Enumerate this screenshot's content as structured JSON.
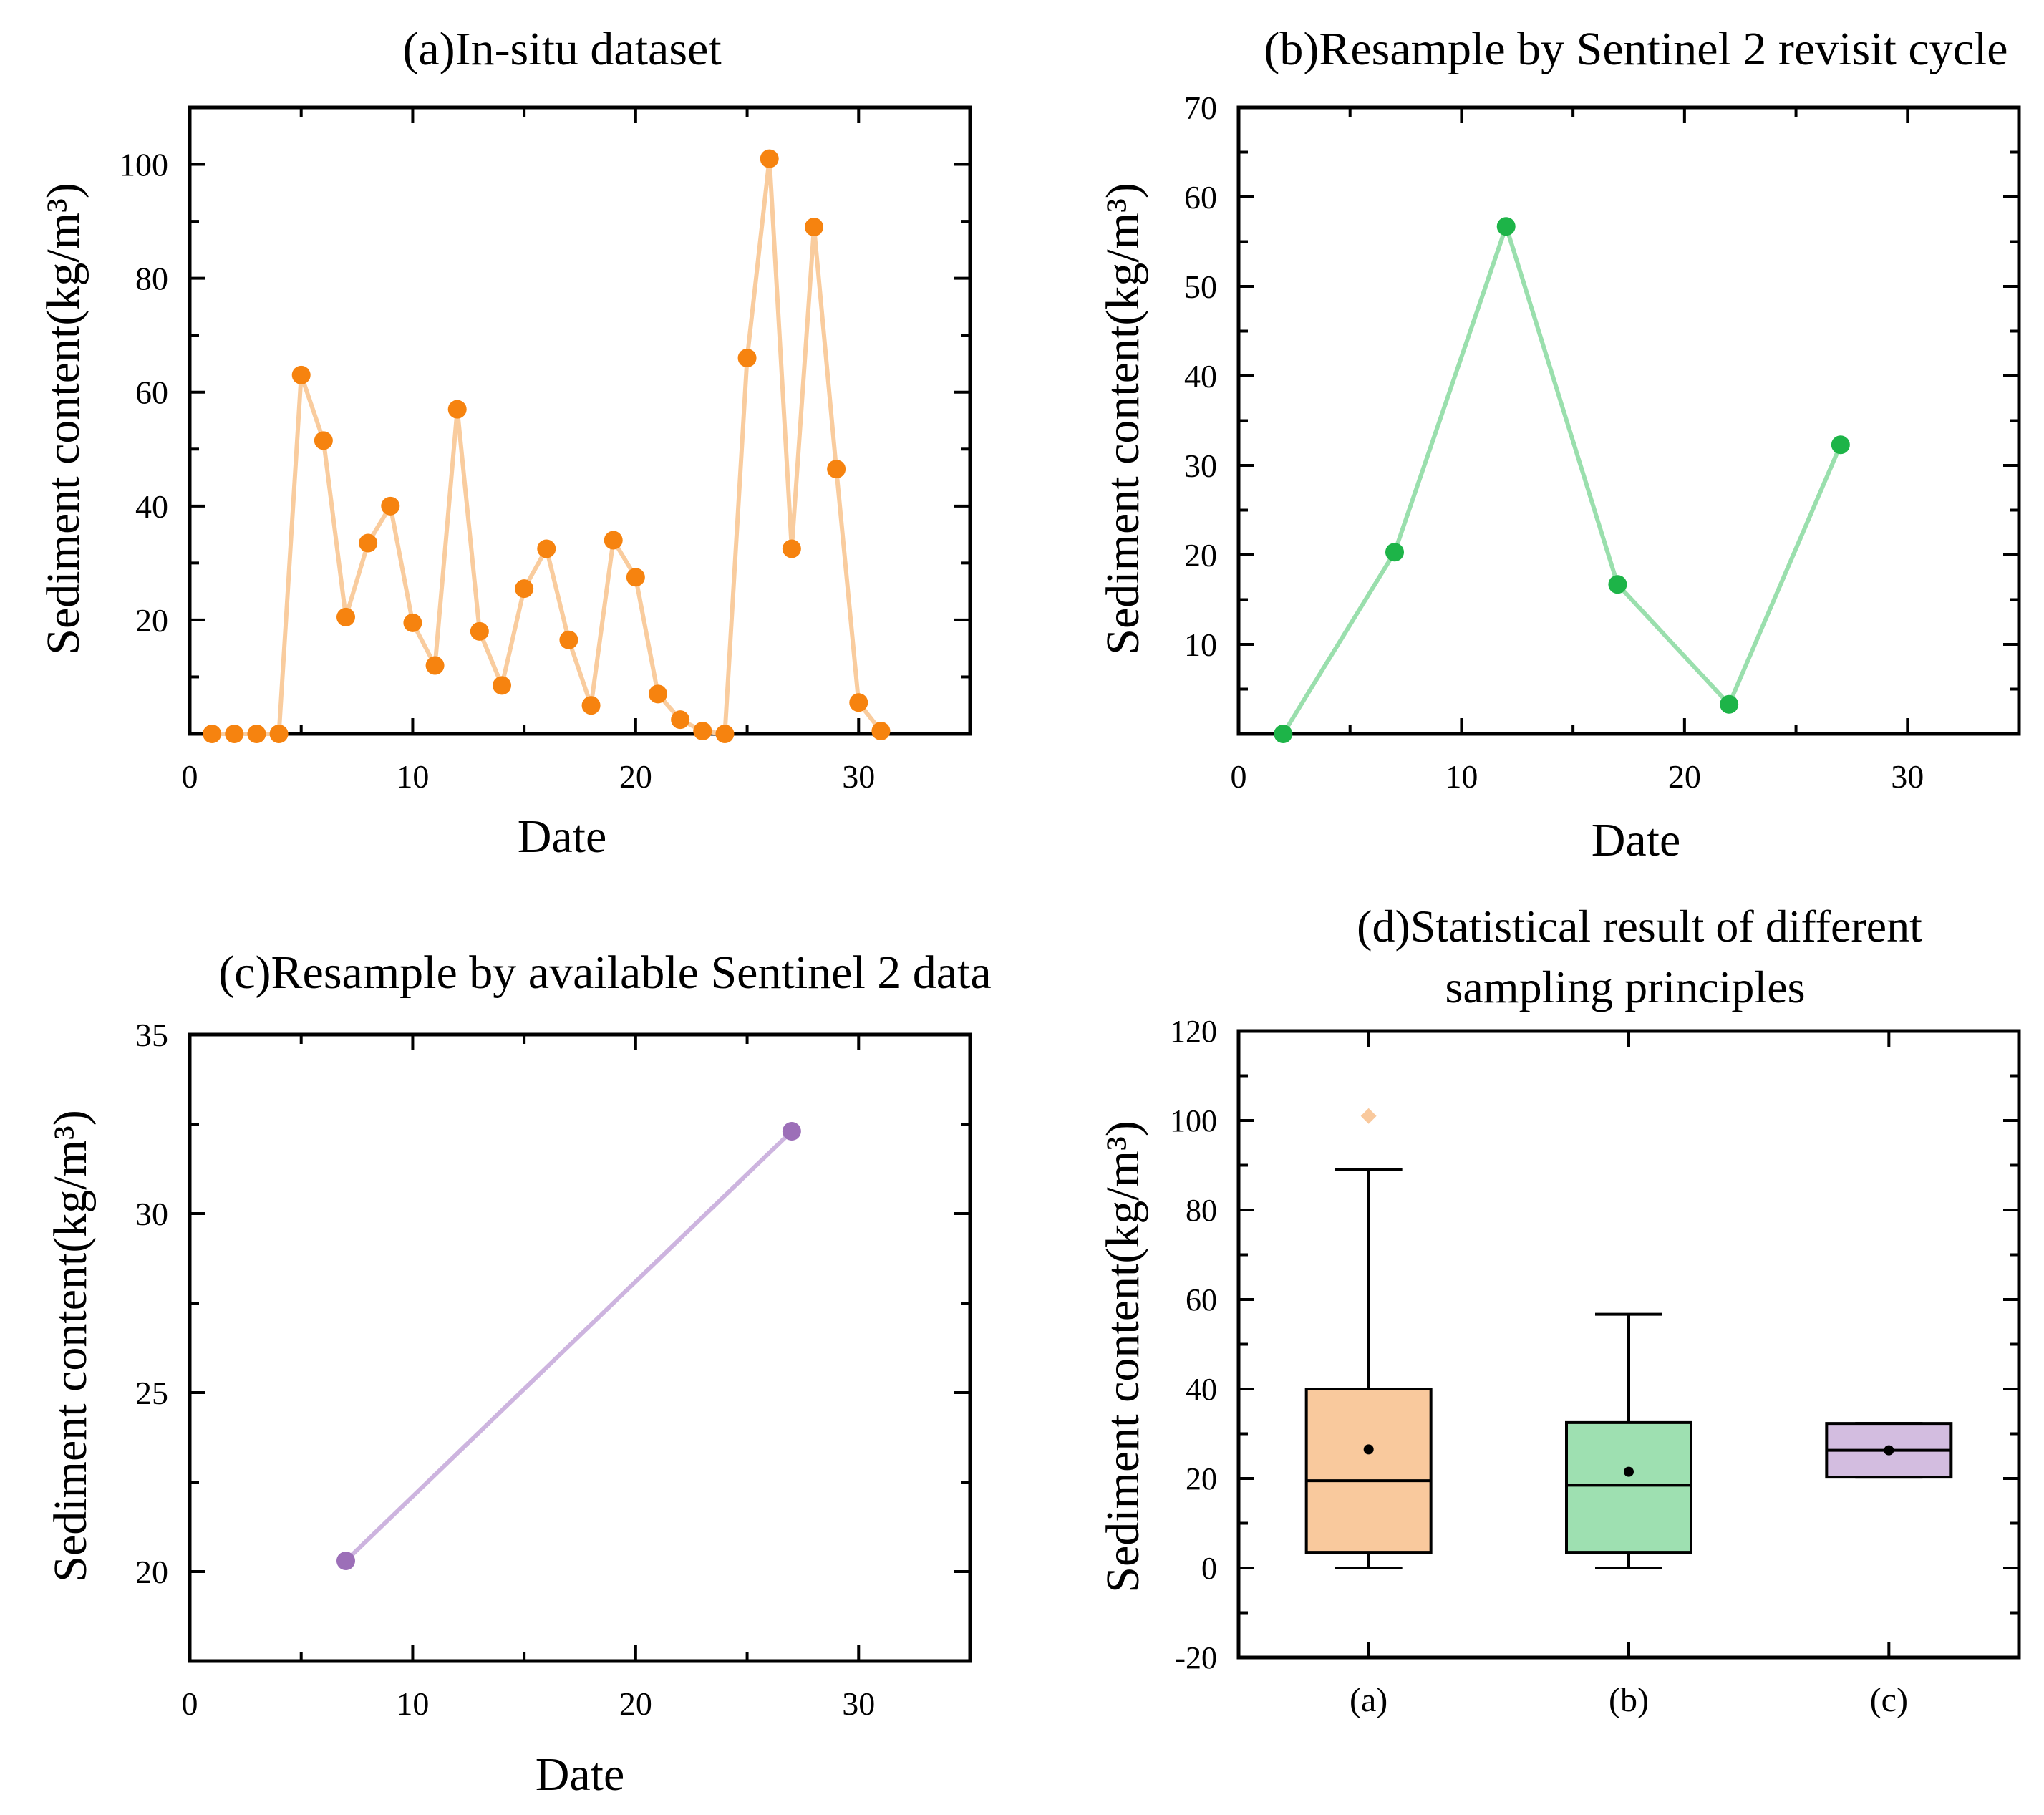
{
  "colors": {
    "a_point": "#F6830F",
    "a_line": "#F9CC9E",
    "b_point": "#1DB448",
    "b_line": "#9ADFAD",
    "c_point": "#9C6FB8",
    "c_line": "#CDB4DF",
    "box_a": "#F9C99D",
    "box_b": "#9EE0B1",
    "box_c": "#D3BDE0",
    "outlier": "#F9C99D"
  },
  "chart_data": [
    {
      "id": "a",
      "type": "line",
      "title": "(a)In-situ dataset",
      "xlabel": "Date",
      "ylabel": "Sediment content(kg/m³)",
      "xlim": [
        0,
        35
      ],
      "ylim": [
        0,
        110
      ],
      "xticks": [
        0,
        10,
        20,
        30
      ],
      "yticks": [
        20,
        40,
        60,
        80,
        100
      ],
      "x": [
        1,
        2,
        3,
        4,
        5,
        6,
        7,
        8,
        9,
        10,
        11,
        12,
        13,
        14,
        15,
        16,
        17,
        18,
        19,
        20,
        21,
        22,
        23,
        24,
        25,
        26,
        27,
        28,
        29,
        30,
        31
      ],
      "y": [
        0,
        0,
        0,
        0,
        63,
        51.5,
        20.5,
        33.5,
        40,
        19.5,
        12,
        57,
        18,
        8.5,
        25.5,
        32.5,
        16.5,
        5,
        34,
        27.5,
        7,
        2.5,
        0.5,
        0,
        66,
        101,
        32.5,
        89,
        46.5,
        5.5,
        0.5
      ]
    },
    {
      "id": "b",
      "type": "line",
      "title": "(b)Resample by Sentinel 2 revisit cycle",
      "xlabel": "Date",
      "ylabel": "Sediment content(kg/m³)",
      "xlim": [
        0,
        35
      ],
      "ylim": [
        0,
        70
      ],
      "xticks": [
        0,
        10,
        20,
        30
      ],
      "yticks": [
        10,
        20,
        30,
        40,
        50,
        60,
        70
      ],
      "x": [
        2,
        7,
        12,
        17,
        22,
        27
      ],
      "y": [
        0,
        20.3,
        56.7,
        16.7,
        3.3,
        32.3
      ]
    },
    {
      "id": "c",
      "type": "line",
      "title": "(c)Resample by available Sentinel 2 data",
      "xlabel": "Date",
      "ylabel": "Sediment content(kg/m³)",
      "xlim": [
        0,
        35
      ],
      "ylim": [
        17.5,
        35
      ],
      "xticks": [
        0,
        10,
        20,
        30
      ],
      "yticks": [
        20,
        25,
        30,
        35
      ],
      "x": [
        7,
        27
      ],
      "y": [
        20.3,
        32.3
      ]
    },
    {
      "id": "d",
      "type": "box",
      "title_lines": [
        "(d)Statistical result of different",
        "sampling principles"
      ],
      "xlabel": "",
      "ylabel": "Sediment content(kg/m³)",
      "ylim": [
        -20,
        120
      ],
      "yticks": [
        -20,
        0,
        20,
        40,
        60,
        80,
        100,
        120
      ],
      "categories": [
        "(a)",
        "(b)",
        "(c)"
      ],
      "boxes": [
        {
          "whisker_low": 0,
          "q1": 3.5,
          "median": 19.5,
          "q3": 40,
          "whisker_high": 89,
          "mean": 26.5,
          "outliers": [
            101
          ]
        },
        {
          "whisker_low": 0,
          "q1": 3.5,
          "median": 18.5,
          "q3": 32.5,
          "whisker_high": 56.7,
          "mean": 21.5,
          "outliers": []
        },
        {
          "whisker_low": 20.3,
          "q1": 20.3,
          "median": 26.3,
          "q3": 32.3,
          "whisker_high": 32.3,
          "mean": 26.3,
          "outliers": []
        }
      ]
    }
  ]
}
